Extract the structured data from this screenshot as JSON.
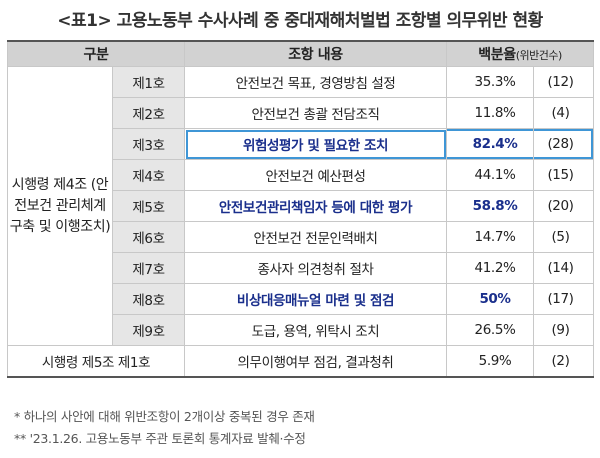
{
  "title": "<표1> 고용노동부 수사사례 중 중대재해처벌법 조항별 의무위반 현황",
  "header": {
    "category": "구분",
    "content": "조항 내용",
    "ratio": "백분율",
    "ratio_sub": "(위반건수)"
  },
  "group_label": "시행령 제4조 (안전보건 관리체계 구축 및 이행조치)",
  "rows": [
    {
      "item": "제1호",
      "content": "안전보건 목표, 경영방침 설정",
      "percent": "35.3%",
      "count": "(12)"
    },
    {
      "item": "제2호",
      "content": "안전보건 총괄 전담조직",
      "percent": "11.8%",
      "count": "(4)"
    },
    {
      "item": "제3호",
      "content": "위험성평가 및 필요한 조치",
      "percent": "82.4%",
      "count": "(28)"
    },
    {
      "item": "제4호",
      "content": "안전보건 예산편성",
      "percent": "44.1%",
      "count": "(15)"
    },
    {
      "item": "제5호",
      "content": "안전보건관리책임자 등에 대한 평가",
      "percent": "58.8%",
      "count": "(20)"
    },
    {
      "item": "제6호",
      "content": "안전보건 전문인력배치",
      "percent": "14.7%",
      "count": "(5)"
    },
    {
      "item": "제7호",
      "content": "종사자 의견청취 절차",
      "percent": "41.2%",
      "count": "(14)"
    },
    {
      "item": "제8호",
      "content": "비상대응매뉴얼 마련 및 점검",
      "percent": "50%",
      "count": "(17)"
    },
    {
      "item": "제9호",
      "content": "도급, 용역, 위탁시 조치",
      "percent": "26.5%",
      "count": "(9)"
    }
  ],
  "last_row": {
    "category": "시행령 제5조 제1호",
    "content": "의무이행여부 점검, 결과청취",
    "percent": "5.9%",
    "count": "(2)"
  },
  "notes": [
    "* 하나의 사안에 대해 위반조항이 2개이상 중복된 경우 존재",
    "** '23.1.26. 고용노동부 주관 토론회 통계자료 발췌·수정"
  ],
  "colors": {
    "highlight_text": "#1a2f8c",
    "highlight_border": "#3f96d6",
    "header_bg": "#d2d2d2",
    "item_bg": "#e6e6e6"
  }
}
